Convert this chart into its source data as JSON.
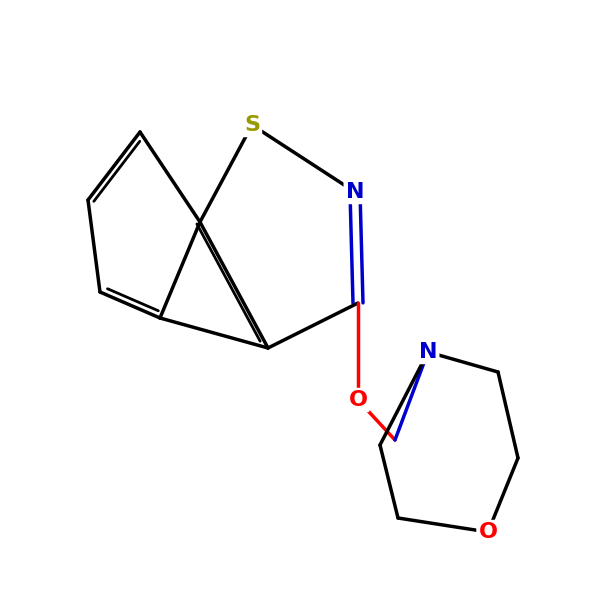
{
  "bg_color": "#ffffff",
  "line_color": "#000000",
  "line_width": 2.5,
  "atom_colors": {
    "S": "#999900",
    "N": "#0000cc",
    "O": "#ff0000",
    "C": "#000000"
  },
  "font_size": 14,
  "figsize": [
    6.0,
    6.0
  ],
  "dpi": 100
}
